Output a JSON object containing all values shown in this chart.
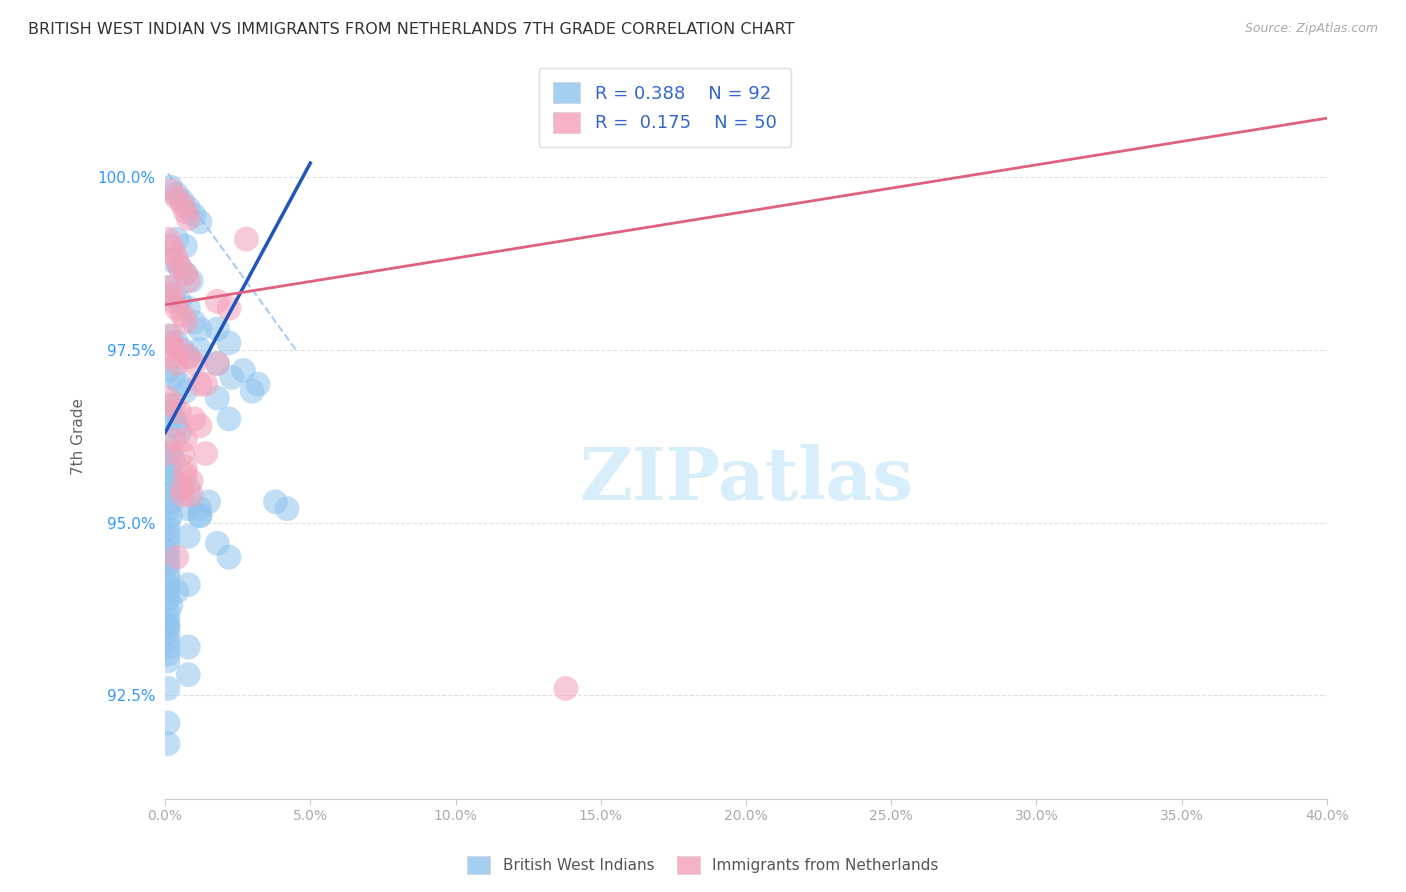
{
  "title": "BRITISH WEST INDIAN VS IMMIGRANTS FROM NETHERLANDS 7TH GRADE CORRELATION CHART",
  "source": "Source: ZipAtlas.com",
  "ylabel": "7th Grade",
  "blue_R": 0.388,
  "blue_N": 92,
  "pink_R": 0.175,
  "pink_N": 50,
  "blue_color": "#8EC4EE",
  "pink_color": "#F4A0B8",
  "blue_line_color": "#2255BB",
  "pink_line_color": "#E06080",
  "blue_label": "British West Indians",
  "pink_label": "Immigrants from Netherlands",
  "blue_x": [
    0.002,
    0.004,
    0.006,
    0.008,
    0.01,
    0.012,
    0.004,
    0.007,
    0.002,
    0.005,
    0.007,
    0.009,
    0.001,
    0.003,
    0.005,
    0.008,
    0.01,
    0.012,
    0.002,
    0.004,
    0.006,
    0.008,
    0.001,
    0.003,
    0.005,
    0.007,
    0.001,
    0.002,
    0.003,
    0.004,
    0.005,
    0.001,
    0.002,
    0.003,
    0.001,
    0.002,
    0.003,
    0.001,
    0.002,
    0.001,
    0.002,
    0.001,
    0.001,
    0.001,
    0.001,
    0.001,
    0.001,
    0.001,
    0.001,
    0.001,
    0.001,
    0.001,
    0.001,
    0.001,
    0.001,
    0.001,
    0.001,
    0.001,
    0.001,
    0.001,
    0.001,
    0.018,
    0.022,
    0.027,
    0.032,
    0.012,
    0.018,
    0.023,
    0.03,
    0.038,
    0.042,
    0.012,
    0.018,
    0.022,
    0.008,
    0.012,
    0.008,
    0.018,
    0.022,
    0.008,
    0.004,
    0.008,
    0.001,
    0.008,
    0.015,
    0.012,
    0.004,
    0.008,
    0.001,
    0.001,
    0.001,
    0.002
  ],
  "blue_y": [
    99.85,
    99.75,
    99.65,
    99.55,
    99.45,
    99.35,
    99.1,
    99.0,
    98.8,
    98.7,
    98.6,
    98.5,
    98.4,
    98.3,
    98.2,
    98.1,
    97.9,
    97.8,
    97.7,
    97.6,
    97.5,
    97.4,
    97.2,
    97.1,
    97.0,
    96.9,
    96.7,
    96.6,
    96.5,
    96.4,
    96.3,
    96.1,
    96.0,
    95.9,
    95.8,
    95.7,
    95.6,
    95.4,
    95.3,
    95.2,
    95.1,
    95.0,
    94.9,
    94.8,
    94.7,
    94.6,
    94.5,
    94.4,
    94.3,
    94.2,
    94.1,
    94.0,
    93.9,
    93.7,
    93.6,
    93.5,
    93.4,
    93.3,
    93.2,
    93.1,
    93.0,
    97.8,
    97.6,
    97.2,
    97.0,
    97.5,
    97.3,
    97.1,
    96.9,
    95.3,
    95.2,
    95.1,
    96.8,
    96.5,
    95.5,
    95.2,
    94.8,
    94.7,
    94.5,
    94.1,
    94.0,
    93.2,
    93.5,
    92.8,
    95.3,
    95.1,
    95.5,
    95.2,
    92.6,
    91.8,
    92.1,
    93.8
  ],
  "pink_x": [
    0.002,
    0.004,
    0.006,
    0.007,
    0.008,
    0.001,
    0.002,
    0.003,
    0.004,
    0.005,
    0.007,
    0.008,
    0.001,
    0.002,
    0.003,
    0.004,
    0.006,
    0.007,
    0.001,
    0.002,
    0.003,
    0.004,
    0.003,
    0.005,
    0.008,
    0.01,
    0.012,
    0.014,
    0.018,
    0.001,
    0.003,
    0.005,
    0.01,
    0.012,
    0.007,
    0.001,
    0.018,
    0.022,
    0.028,
    0.006,
    0.003,
    0.014,
    0.007,
    0.007,
    0.009,
    0.006,
    0.009,
    0.006,
    0.138,
    0.004
  ],
  "pink_y": [
    99.8,
    99.7,
    99.6,
    99.5,
    99.4,
    99.1,
    99.0,
    98.9,
    98.8,
    98.7,
    98.6,
    98.5,
    98.4,
    98.3,
    98.2,
    98.1,
    98.0,
    97.9,
    97.7,
    97.6,
    97.4,
    97.3,
    97.5,
    97.5,
    97.4,
    97.3,
    97.0,
    97.0,
    97.3,
    96.8,
    96.7,
    96.6,
    96.5,
    96.4,
    96.2,
    96.0,
    98.2,
    98.1,
    99.1,
    96.0,
    96.2,
    96.0,
    95.7,
    95.8,
    95.6,
    95.5,
    95.4,
    95.4,
    92.6,
    94.5
  ],
  "blue_trend": [
    0.0,
    0.05,
    96.3,
    100.2
  ],
  "pink_trend": [
    0.0,
    0.4,
    98.15,
    100.85
  ],
  "blue_dash": [
    0.001,
    0.045,
    100.05,
    97.5
  ],
  "xlim": [
    0.0,
    0.4
  ],
  "ylim": [
    91.0,
    101.5
  ],
  "y_ticks": [
    92.5,
    95.0,
    97.5,
    100.0
  ],
  "y_tick_labels": [
    "92.5%",
    "95.0%",
    "97.5%",
    "100.0%"
  ],
  "x_ticks": [
    0.0,
    0.05,
    0.1,
    0.15,
    0.2,
    0.25,
    0.3,
    0.35,
    0.4
  ],
  "x_tick_labels": [
    "0.0%",
    "5.0%",
    "10.0%",
    "15.0%",
    "20.0%",
    "25.0%",
    "30.0%",
    "35.0%",
    "40.0%"
  ]
}
